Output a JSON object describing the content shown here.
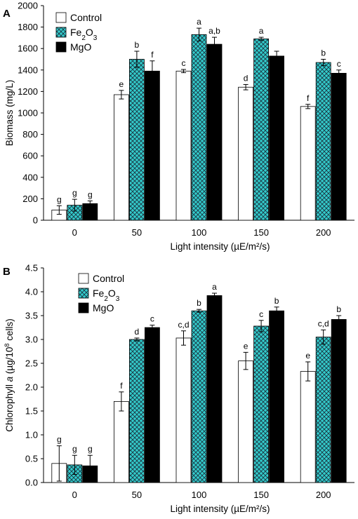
{
  "figure": {
    "legend": [
      {
        "label": "Control",
        "sub": "",
        "tail": "",
        "pattern": "white"
      },
      {
        "label": "Fe",
        "sub": "2",
        "tail": "O",
        "sub2": "3",
        "pattern": "hatch"
      },
      {
        "label": "MgO",
        "sub": "",
        "tail": "",
        "pattern": "black"
      }
    ],
    "colors": {
      "control": "#ffffff",
      "fe2o3": "#33cccc",
      "mgo": "#000000",
      "hatch_line": "#1a3340"
    }
  },
  "chart_data": [
    {
      "panel": "A",
      "type": "bar",
      "xlabel": "Light intensity (µE/m²/s)",
      "ylabel": "Biomass (mg/L)",
      "ylim": [
        0,
        2000
      ],
      "yticks": [
        0,
        200,
        400,
        600,
        800,
        1000,
        1200,
        1400,
        1600,
        1800,
        2000
      ],
      "categories": [
        "0",
        "50",
        "100",
        "150",
        "200"
      ],
      "grid": false,
      "legend_position": "top-left",
      "series": [
        {
          "name": "Control",
          "values": [
            95,
            1170,
            1390,
            1240,
            1060
          ],
          "errors": [
            40,
            40,
            15,
            25,
            20
          ],
          "letters": [
            "g",
            "e",
            "c",
            "d",
            "f"
          ]
        },
        {
          "name": "Fe2O3",
          "values": [
            140,
            1500,
            1730,
            1690,
            1470
          ],
          "errors": [
            55,
            75,
            60,
            15,
            30
          ],
          "letters": [
            "g",
            "b",
            "a",
            "a",
            "b"
          ]
        },
        {
          "name": "MgO",
          "values": [
            155,
            1390,
            1640,
            1530,
            1370
          ],
          "errors": [
            25,
            95,
            65,
            45,
            30
          ],
          "letters": [
            "g",
            "f",
            "a,b",
            "",
            "c"
          ]
        }
      ]
    },
    {
      "panel": "B",
      "type": "bar",
      "xlabel": "Light intensity (µE/m²/s)",
      "ylabel": "Chlorophyll a (µg/10⁸ cells)",
      "ylabel_parts": {
        "pre": "Chlorophyll ",
        "ital": "a",
        "post": " (µg/10",
        "sup": "8",
        "end": " cells)"
      },
      "ylim": [
        0,
        4.5
      ],
      "yticks": [
        "0.0",
        "0.5",
        "1.0",
        "1.5",
        "2.0",
        "2.5",
        "3.0",
        "3.5",
        "4.0",
        "4.5"
      ],
      "categories": [
        "0",
        "50",
        "100",
        "150",
        "200"
      ],
      "grid": false,
      "legend_position": "top-left",
      "series": [
        {
          "name": "Control",
          "values": [
            0.4,
            1.7,
            3.03,
            2.55,
            2.33
          ],
          "errors": [
            0.37,
            0.2,
            0.15,
            0.18,
            0.2
          ],
          "letters": [
            "g",
            "f",
            "c,d",
            "e",
            "e"
          ]
        },
        {
          "name": "Fe2O3",
          "values": [
            0.37,
            3.0,
            3.6,
            3.28,
            3.05
          ],
          "errors": [
            0.2,
            0.03,
            0.03,
            0.12,
            0.15
          ],
          "letters": [
            "g",
            "d",
            "b",
            "c",
            "c,d"
          ]
        },
        {
          "name": "MgO",
          "values": [
            0.35,
            3.25,
            3.92,
            3.6,
            3.42
          ],
          "errors": [
            0.22,
            0.05,
            0.05,
            0.08,
            0.08
          ],
          "letters": [
            "g",
            "c",
            "a",
            "b",
            "b"
          ]
        }
      ]
    }
  ]
}
